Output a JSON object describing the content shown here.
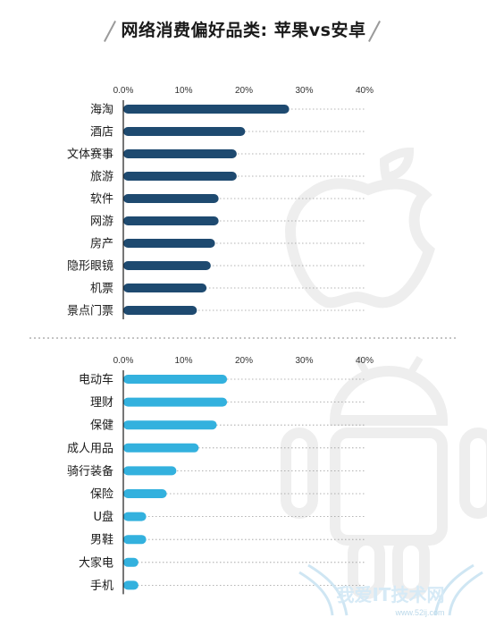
{
  "title": "网络消费偏好品类: 苹果vs安卓",
  "watermark": "我爱IT技术网",
  "watermark_url": "www.52ij.com",
  "colors": {
    "apple_bar": "#1e4a70",
    "android_bar": "#33b1de",
    "grid": "#9a9a9a",
    "divider": "#8a8a8a",
    "silhouette": "#eeeeee"
  },
  "chart_data": [
    {
      "type": "bar",
      "orientation": "horizontal",
      "categories": [
        "海淘",
        "酒店",
        "文体赛事",
        "旅游",
        "软件",
        "网游",
        "房产",
        "隐形眼镜",
        "机票",
        "景点门票"
      ],
      "values": [
        27.5,
        20.2,
        18.8,
        18.8,
        15.8,
        15.8,
        15.2,
        14.5,
        13.8,
        12.2
      ],
      "ticks": [
        "0.0%",
        "10%",
        "20%",
        "30%",
        "40%"
      ],
      "xlim": [
        0,
        40
      ],
      "unit": "%",
      "grid": "dotted",
      "color": "#1e4a70"
    },
    {
      "type": "bar",
      "orientation": "horizontal",
      "categories": [
        "电动车",
        "理财",
        "保健",
        "成人用品",
        "骑行装备",
        "保险",
        "U盘",
        "男鞋",
        "大家电",
        "手机"
      ],
      "values": [
        17.2,
        17.2,
        15.5,
        12.5,
        8.8,
        7.2,
        3.8,
        3.8,
        2.5,
        2.5
      ],
      "ticks": [
        "0.0%",
        "10%",
        "20%",
        "30%",
        "40%"
      ],
      "xlim": [
        0,
        40
      ],
      "unit": "%",
      "grid": "dotted",
      "color": "#33b1de"
    }
  ]
}
